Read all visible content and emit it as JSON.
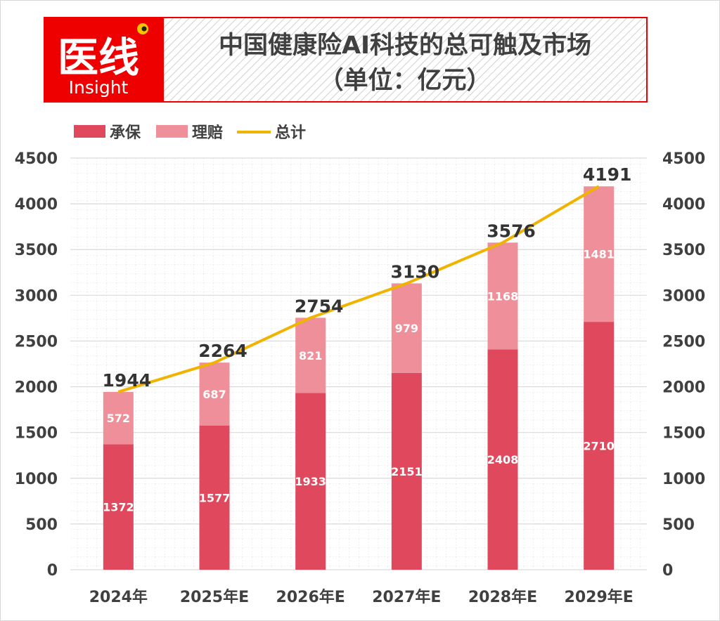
{
  "header": {
    "logo_text_cn": "医线",
    "logo_text_en": "Insight",
    "title_line1": "中国健康险AI科技的总可触及市场",
    "title_line2": "（单位：亿元）"
  },
  "colors": {
    "underwriting": "#e0485e",
    "claims": "#ef8f99",
    "total": "#f0b400",
    "brand_red": "#ee0000"
  },
  "chart_data": {
    "type": "bar",
    "stacked": true,
    "categories": [
      "2024年",
      "2025年E",
      "2026年E",
      "2027年E",
      "2028年E",
      "2029年E"
    ],
    "series": [
      {
        "name": "承保",
        "type": "bar",
        "values": [
          1372,
          1577,
          1933,
          2151,
          2408,
          2710
        ]
      },
      {
        "name": "理赔",
        "type": "bar",
        "values": [
          572,
          687,
          821,
          979,
          1168,
          1481
        ]
      },
      {
        "name": "总计",
        "type": "line",
        "values": [
          1944,
          2264,
          2754,
          3130,
          3576,
          4191
        ]
      }
    ],
    "ylim": [
      0,
      4500
    ],
    "yticks": [
      0,
      500,
      1000,
      1500,
      2000,
      2500,
      3000,
      3500,
      4000,
      4500
    ],
    "secondary_axis": true,
    "grid": true,
    "legend": "top-left"
  }
}
